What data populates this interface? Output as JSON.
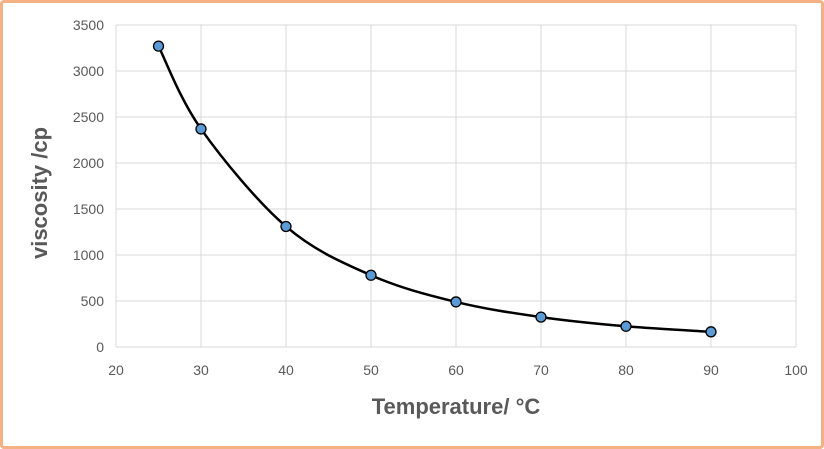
{
  "chart_data": {
    "type": "scatter",
    "title": "",
    "xlabel": "Temperature/ °C",
    "ylabel": "viscosity /cp",
    "xlim": [
      20,
      100
    ],
    "ylim": [
      0,
      3500
    ],
    "x_ticks": [
      20,
      30,
      40,
      50,
      60,
      70,
      80,
      90,
      100
    ],
    "y_ticks": [
      0,
      500,
      1000,
      1500,
      2000,
      2500,
      3000,
      3500
    ],
    "grid": true,
    "smooth_line": true,
    "series": [
      {
        "x": [
          25,
          30,
          40,
          50,
          60,
          70,
          80,
          90
        ],
        "y": [
          3270,
          2370,
          1310,
          780,
          490,
          325,
          225,
          165
        ]
      }
    ],
    "colors": {
      "marker_fill": "#5b9bd5",
      "marker_stroke": "#000000",
      "line": "#000000",
      "grid": "#d9d9d9",
      "frame_border": "#f4b183",
      "text": "#595959"
    }
  }
}
